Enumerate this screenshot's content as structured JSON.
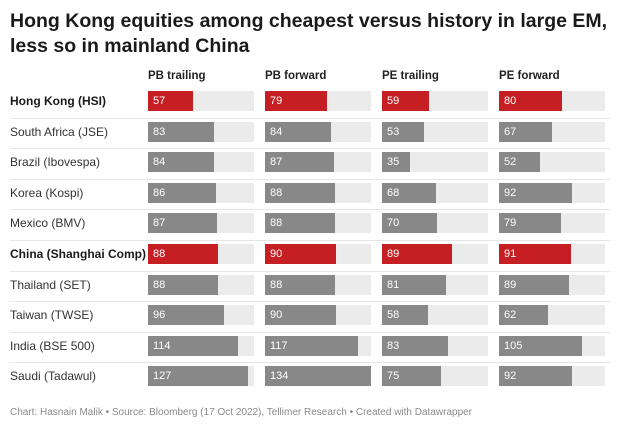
{
  "chart_data": {
    "type": "table",
    "title": "Hong Kong equities among cheapest versus history in large EM, less so in mainland China",
    "columns": [
      "PB trailing",
      "PB forward",
      "PE trailing",
      "PE forward"
    ],
    "scale_max": 134,
    "highlight_color": "#c51f24",
    "bar_color": "#888888",
    "track_color": "#ebebeb",
    "rows": [
      {
        "label": "Hong Kong (HSI)",
        "highlight": true,
        "values": [
          57,
          79,
          59,
          80
        ]
      },
      {
        "label": "South Africa (JSE)",
        "highlight": false,
        "values": [
          83,
          84,
          53,
          67
        ]
      },
      {
        "label": "Brazil (Ibovespa)",
        "highlight": false,
        "values": [
          84,
          87,
          35,
          52
        ]
      },
      {
        "label": "Korea (Kospi)",
        "highlight": false,
        "values": [
          86,
          88,
          68,
          92
        ]
      },
      {
        "label": "Mexico (BMV)",
        "highlight": false,
        "values": [
          87,
          88,
          70,
          79
        ]
      },
      {
        "label": "China (Shanghai Comp)",
        "highlight": true,
        "values": [
          88,
          90,
          89,
          91
        ]
      },
      {
        "label": "Thailand (SET)",
        "highlight": false,
        "values": [
          88,
          88,
          81,
          89
        ]
      },
      {
        "label": "Taiwan (TWSE)",
        "highlight": false,
        "values": [
          96,
          90,
          58,
          62
        ]
      },
      {
        "label": "India (BSE 500)",
        "highlight": false,
        "values": [
          114,
          117,
          83,
          105
        ]
      },
      {
        "label": "Saudi (Tadawul)",
        "highlight": false,
        "values": [
          127,
          134,
          75,
          92
        ]
      }
    ],
    "footer": "Chart: Hasnain Malik • Source: Bloomberg (17 Oct 2022), Tellimer Research • Created with Datawrapper"
  }
}
